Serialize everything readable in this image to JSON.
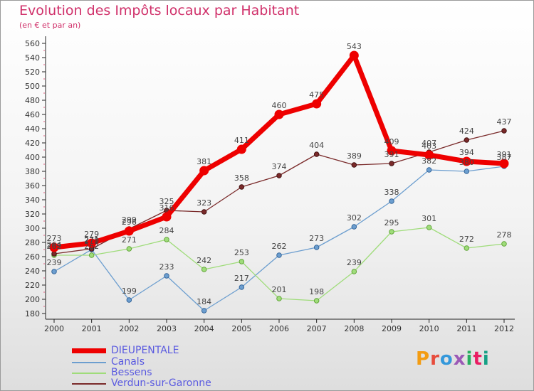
{
  "title": "Evolution des Impôts locaux par Habitant",
  "subtitle": "(en € et par an)",
  "logo": {
    "text": "Proxiti",
    "colors": [
      "#f39c12",
      "#e74c3c",
      "#3498db",
      "#9b59b6",
      "#27ae60",
      "#e91e63",
      "#16a085"
    ]
  },
  "chart_data": {
    "type": "line",
    "x": [
      "2000",
      "2001",
      "2002",
      "2003",
      "2004",
      "2005",
      "2006",
      "2007",
      "2008",
      "2009",
      "2010",
      "2011",
      "2012"
    ],
    "ylim": [
      180,
      560
    ],
    "yticks": [
      180,
      200,
      220,
      240,
      260,
      280,
      300,
      320,
      340,
      360,
      380,
      400,
      420,
      440,
      460,
      480,
      500,
      520,
      540,
      560
    ],
    "grid": false,
    "legend_position": "bottom-left",
    "series": [
      {
        "name": "DIEUPENTALE",
        "color": "#ee0000",
        "values": [
          273,
          279,
          296,
          316,
          381,
          411,
          460,
          475,
          543,
          409,
          403,
          394,
          391
        ]
      },
      {
        "name": "Canals",
        "color": "#6c9ecf",
        "values": [
          239,
          270,
          199,
          233,
          184,
          217,
          262,
          273,
          302,
          338,
          382,
          380,
          387
        ]
      },
      {
        "name": "Bessens",
        "color": "#9fdc7a",
        "values": [
          262,
          262,
          271,
          284,
          242,
          253,
          201,
          198,
          239,
          295,
          301,
          272,
          278
        ]
      },
      {
        "name": "Verdun-sur-Garonne",
        "color": "#7a2a2a",
        "values": [
          264,
          271,
          299,
          325,
          323,
          358,
          374,
          404,
          389,
          391,
          407,
          424,
          437
        ]
      }
    ],
    "value_labels": [
      {
        "series": 0,
        "labels": [
          "273",
          "279",
          "296",
          "316",
          "381",
          "411",
          "460",
          "475",
          "543",
          "409",
          "403",
          "394",
          "391"
        ]
      },
      {
        "series": 1,
        "labels": [
          "239",
          "270",
          "199",
          "233",
          "184",
          "217",
          "262",
          "273",
          "302",
          "338",
          "382",
          "380",
          "387"
        ]
      },
      {
        "series": 2,
        "labels": [
          "262",
          "262",
          "271",
          "284",
          "242",
          "253",
          "201",
          "198",
          "239",
          "295",
          "301",
          "272",
          "278"
        ]
      },
      {
        "series": 3,
        "labels": [
          "264",
          "271",
          "299",
          "325",
          "323",
          "358",
          "374",
          "404",
          "389",
          "391",
          "407",
          "424",
          "437"
        ]
      }
    ]
  }
}
